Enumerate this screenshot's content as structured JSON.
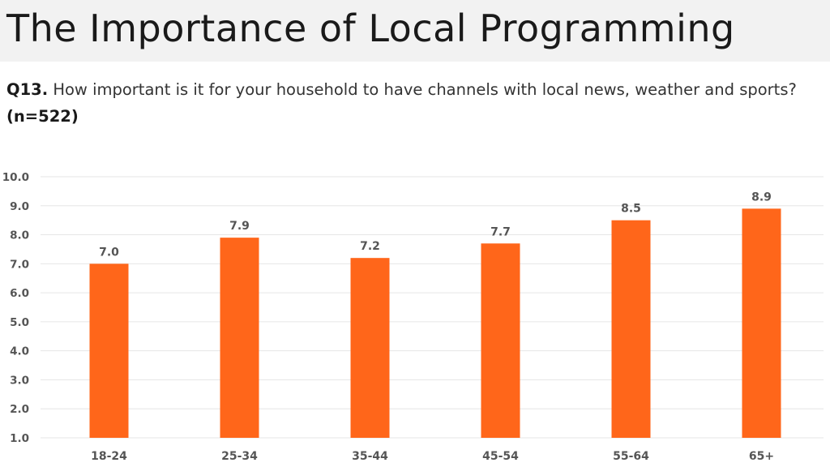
{
  "header": {
    "title": "The Importance of Local Programming"
  },
  "question": {
    "id": "Q13.",
    "text": "How important is it for your household to have channels with local news, weather and sports?",
    "sample": "(n=522)"
  },
  "colors": {
    "bar": "#ff661a",
    "grid": "#e6e6e6",
    "title_band": "#f2f2f2"
  },
  "chart_data": {
    "type": "bar",
    "title": "",
    "xlabel": "",
    "ylabel": "",
    "categories": [
      "18-24",
      "25-34",
      "35-44",
      "45-54",
      "55-64",
      "65+"
    ],
    "values": [
      7.0,
      7.9,
      7.2,
      7.7,
      8.5,
      8.9
    ],
    "data_labels": [
      "7.0",
      "7.9",
      "7.2",
      "7.7",
      "8.5",
      "8.9"
    ],
    "ylim": [
      1.0,
      10.0
    ],
    "yticks": [
      "1.0",
      "2.0",
      "3.0",
      "4.0",
      "5.0",
      "6.0",
      "7.0",
      "8.0",
      "9.0",
      "10.0"
    ],
    "grid": true,
    "legend": "none"
  }
}
